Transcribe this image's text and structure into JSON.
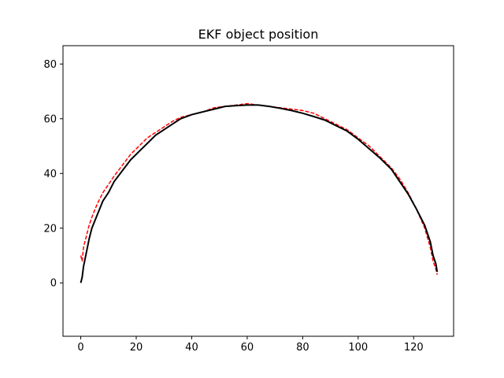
{
  "chart_data": {
    "type": "line",
    "title": "EKF object position",
    "xlabel": "",
    "ylabel": "",
    "xlim": [
      -6.4,
      134.4
    ],
    "ylim": [
      -19.5,
      86.7
    ],
    "x_ticks": [
      0,
      20,
      40,
      60,
      80,
      100,
      120
    ],
    "y_ticks": [
      0,
      20,
      40,
      60,
      80
    ],
    "grid": false,
    "legend": "none",
    "series": [
      {
        "style": "dashed",
        "color": "#ff0000",
        "x": [
          0,
          0.5,
          1,
          2,
          3,
          4,
          6,
          8,
          10,
          12,
          15,
          18,
          21,
          24,
          27,
          30,
          33,
          36,
          40,
          44,
          48,
          52,
          56,
          60,
          64,
          68,
          72,
          76,
          80,
          84,
          88,
          92,
          96,
          100,
          104,
          108,
          112,
          115,
          118,
          121,
          124,
          126,
          127,
          128,
          128.5
        ],
        "y": [
          10,
          8,
          13,
          17,
          21,
          24,
          29,
          33,
          36,
          39,
          43,
          47,
          50,
          53,
          55,
          57,
          59,
          60.5,
          61.5,
          62.5,
          64,
          64.5,
          65,
          65.5,
          65,
          64.5,
          64,
          63.5,
          63,
          62,
          60,
          58,
          56,
          53,
          50,
          46,
          42,
          38,
          33,
          27,
          20,
          13,
          8,
          5,
          3
        ]
      },
      {
        "style": "solid",
        "color": "#000000",
        "x": [
          0,
          0.5,
          1,
          2,
          3,
          4,
          6,
          8,
          10,
          12,
          15,
          18,
          21,
          24,
          27,
          30,
          33,
          36,
          40,
          44,
          48,
          52,
          56,
          60,
          64,
          68,
          72,
          76,
          80,
          84,
          88,
          92,
          96,
          100,
          104,
          108,
          112,
          115,
          118,
          121,
          124,
          126,
          127,
          128,
          128.5
        ],
        "y": [
          0,
          2,
          6,
          11,
          16,
          20,
          25,
          30,
          33,
          37,
          41,
          45,
          48,
          51,
          54,
          56,
          58,
          60,
          61.5,
          62.5,
          63.5,
          64.5,
          64.8,
          65,
          65,
          64.5,
          63.8,
          63,
          62,
          60.8,
          59.5,
          57.5,
          55.5,
          52.5,
          49,
          45.5,
          41.5,
          37,
          32.5,
          27,
          21,
          15,
          10,
          7,
          4
        ]
      }
    ]
  }
}
